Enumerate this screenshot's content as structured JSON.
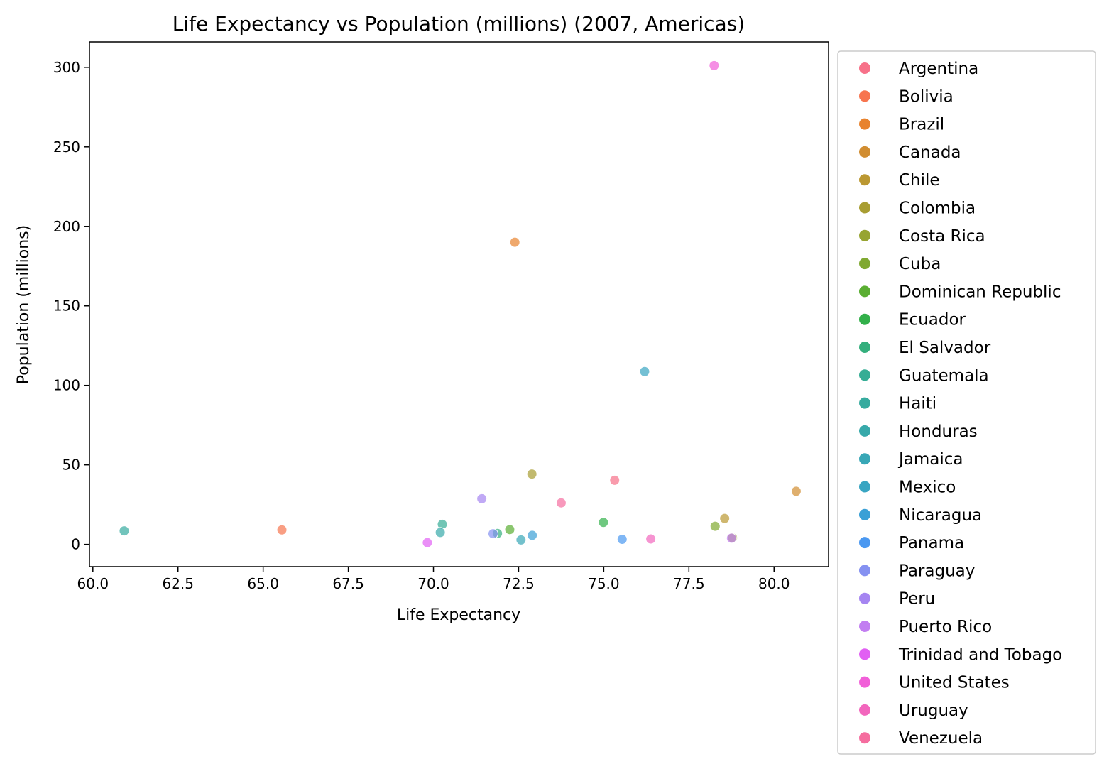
{
  "chart_data": {
    "type": "scatter",
    "title": "Life Expectancy vs Population (millions) (2007, Americas)",
    "xlabel": "Life Expectancy",
    "ylabel": "Population (millions)",
    "xlim": [
      59.9,
      81.6
    ],
    "ylim": [
      -14,
      316
    ],
    "xticks": [
      "60.0",
      "62.5",
      "65.0",
      "67.5",
      "70.0",
      "72.5",
      "75.0",
      "77.5",
      "80.0"
    ],
    "yticks": [
      "0",
      "50",
      "100",
      "150",
      "200",
      "250",
      "300"
    ],
    "grid": false,
    "legend_position": "outside-right",
    "series": [
      {
        "name": "Argentina",
        "color": "#f77189",
        "x": 75.32,
        "y": 40.3
      },
      {
        "name": "Bolivia",
        "color": "#f7754f",
        "x": 65.55,
        "y": 9.1
      },
      {
        "name": "Brazil",
        "color": "#e8832e",
        "x": 72.39,
        "y": 190.0
      },
      {
        "name": "Canada",
        "color": "#d18d31",
        "x": 80.65,
        "y": 33.4
      },
      {
        "name": "Chile",
        "color": "#bb9832",
        "x": 78.55,
        "y": 16.3
      },
      {
        "name": "Colombia",
        "color": "#a89d32",
        "x": 72.89,
        "y": 44.2
      },
      {
        "name": "Costa Rica",
        "color": "#97a431",
        "x": 78.78,
        "y": 4.1
      },
      {
        "name": "Cuba",
        "color": "#80a931",
        "x": 78.27,
        "y": 11.4
      },
      {
        "name": "Dominican Republic",
        "color": "#5aae32",
        "x": 72.24,
        "y": 9.3
      },
      {
        "name": "Ecuador",
        "color": "#32b04a",
        "x": 74.99,
        "y": 13.8
      },
      {
        "name": "El Salvador",
        "color": "#34af7d",
        "x": 71.88,
        "y": 6.9
      },
      {
        "name": "Guatemala",
        "color": "#35ad95",
        "x": 70.26,
        "y": 12.6
      },
      {
        "name": "Haiti",
        "color": "#36ab9f",
        "x": 60.92,
        "y": 8.5
      },
      {
        "name": "Honduras",
        "color": "#37a9aa",
        "x": 70.2,
        "y": 7.5
      },
      {
        "name": "Jamaica",
        "color": "#38a7b6",
        "x": 72.57,
        "y": 2.8
      },
      {
        "name": "Mexico",
        "color": "#39a5c2",
        "x": 76.2,
        "y": 108.7
      },
      {
        "name": "Nicaragua",
        "color": "#3aa0d6",
        "x": 72.9,
        "y": 5.7
      },
      {
        "name": "Panama",
        "color": "#4a98f1",
        "x": 75.54,
        "y": 3.2
      },
      {
        "name": "Paraguay",
        "color": "#8591f1",
        "x": 71.75,
        "y": 6.7
      },
      {
        "name": "Peru",
        "color": "#a585f1",
        "x": 71.42,
        "y": 28.7
      },
      {
        "name": "Puerto Rico",
        "color": "#c27ef1",
        "x": 78.75,
        "y": 3.9
      },
      {
        "name": "Trinidad and Tobago",
        "color": "#e15ff3",
        "x": 69.82,
        "y": 1.1
      },
      {
        "name": "United States",
        "color": "#f15fd8",
        "x": 78.24,
        "y": 301.1
      },
      {
        "name": "Uruguay",
        "color": "#f266bd",
        "x": 76.38,
        "y": 3.4
      },
      {
        "name": "Venezuela",
        "color": "#f56d9f",
        "x": 73.75,
        "y": 26.1
      }
    ]
  }
}
